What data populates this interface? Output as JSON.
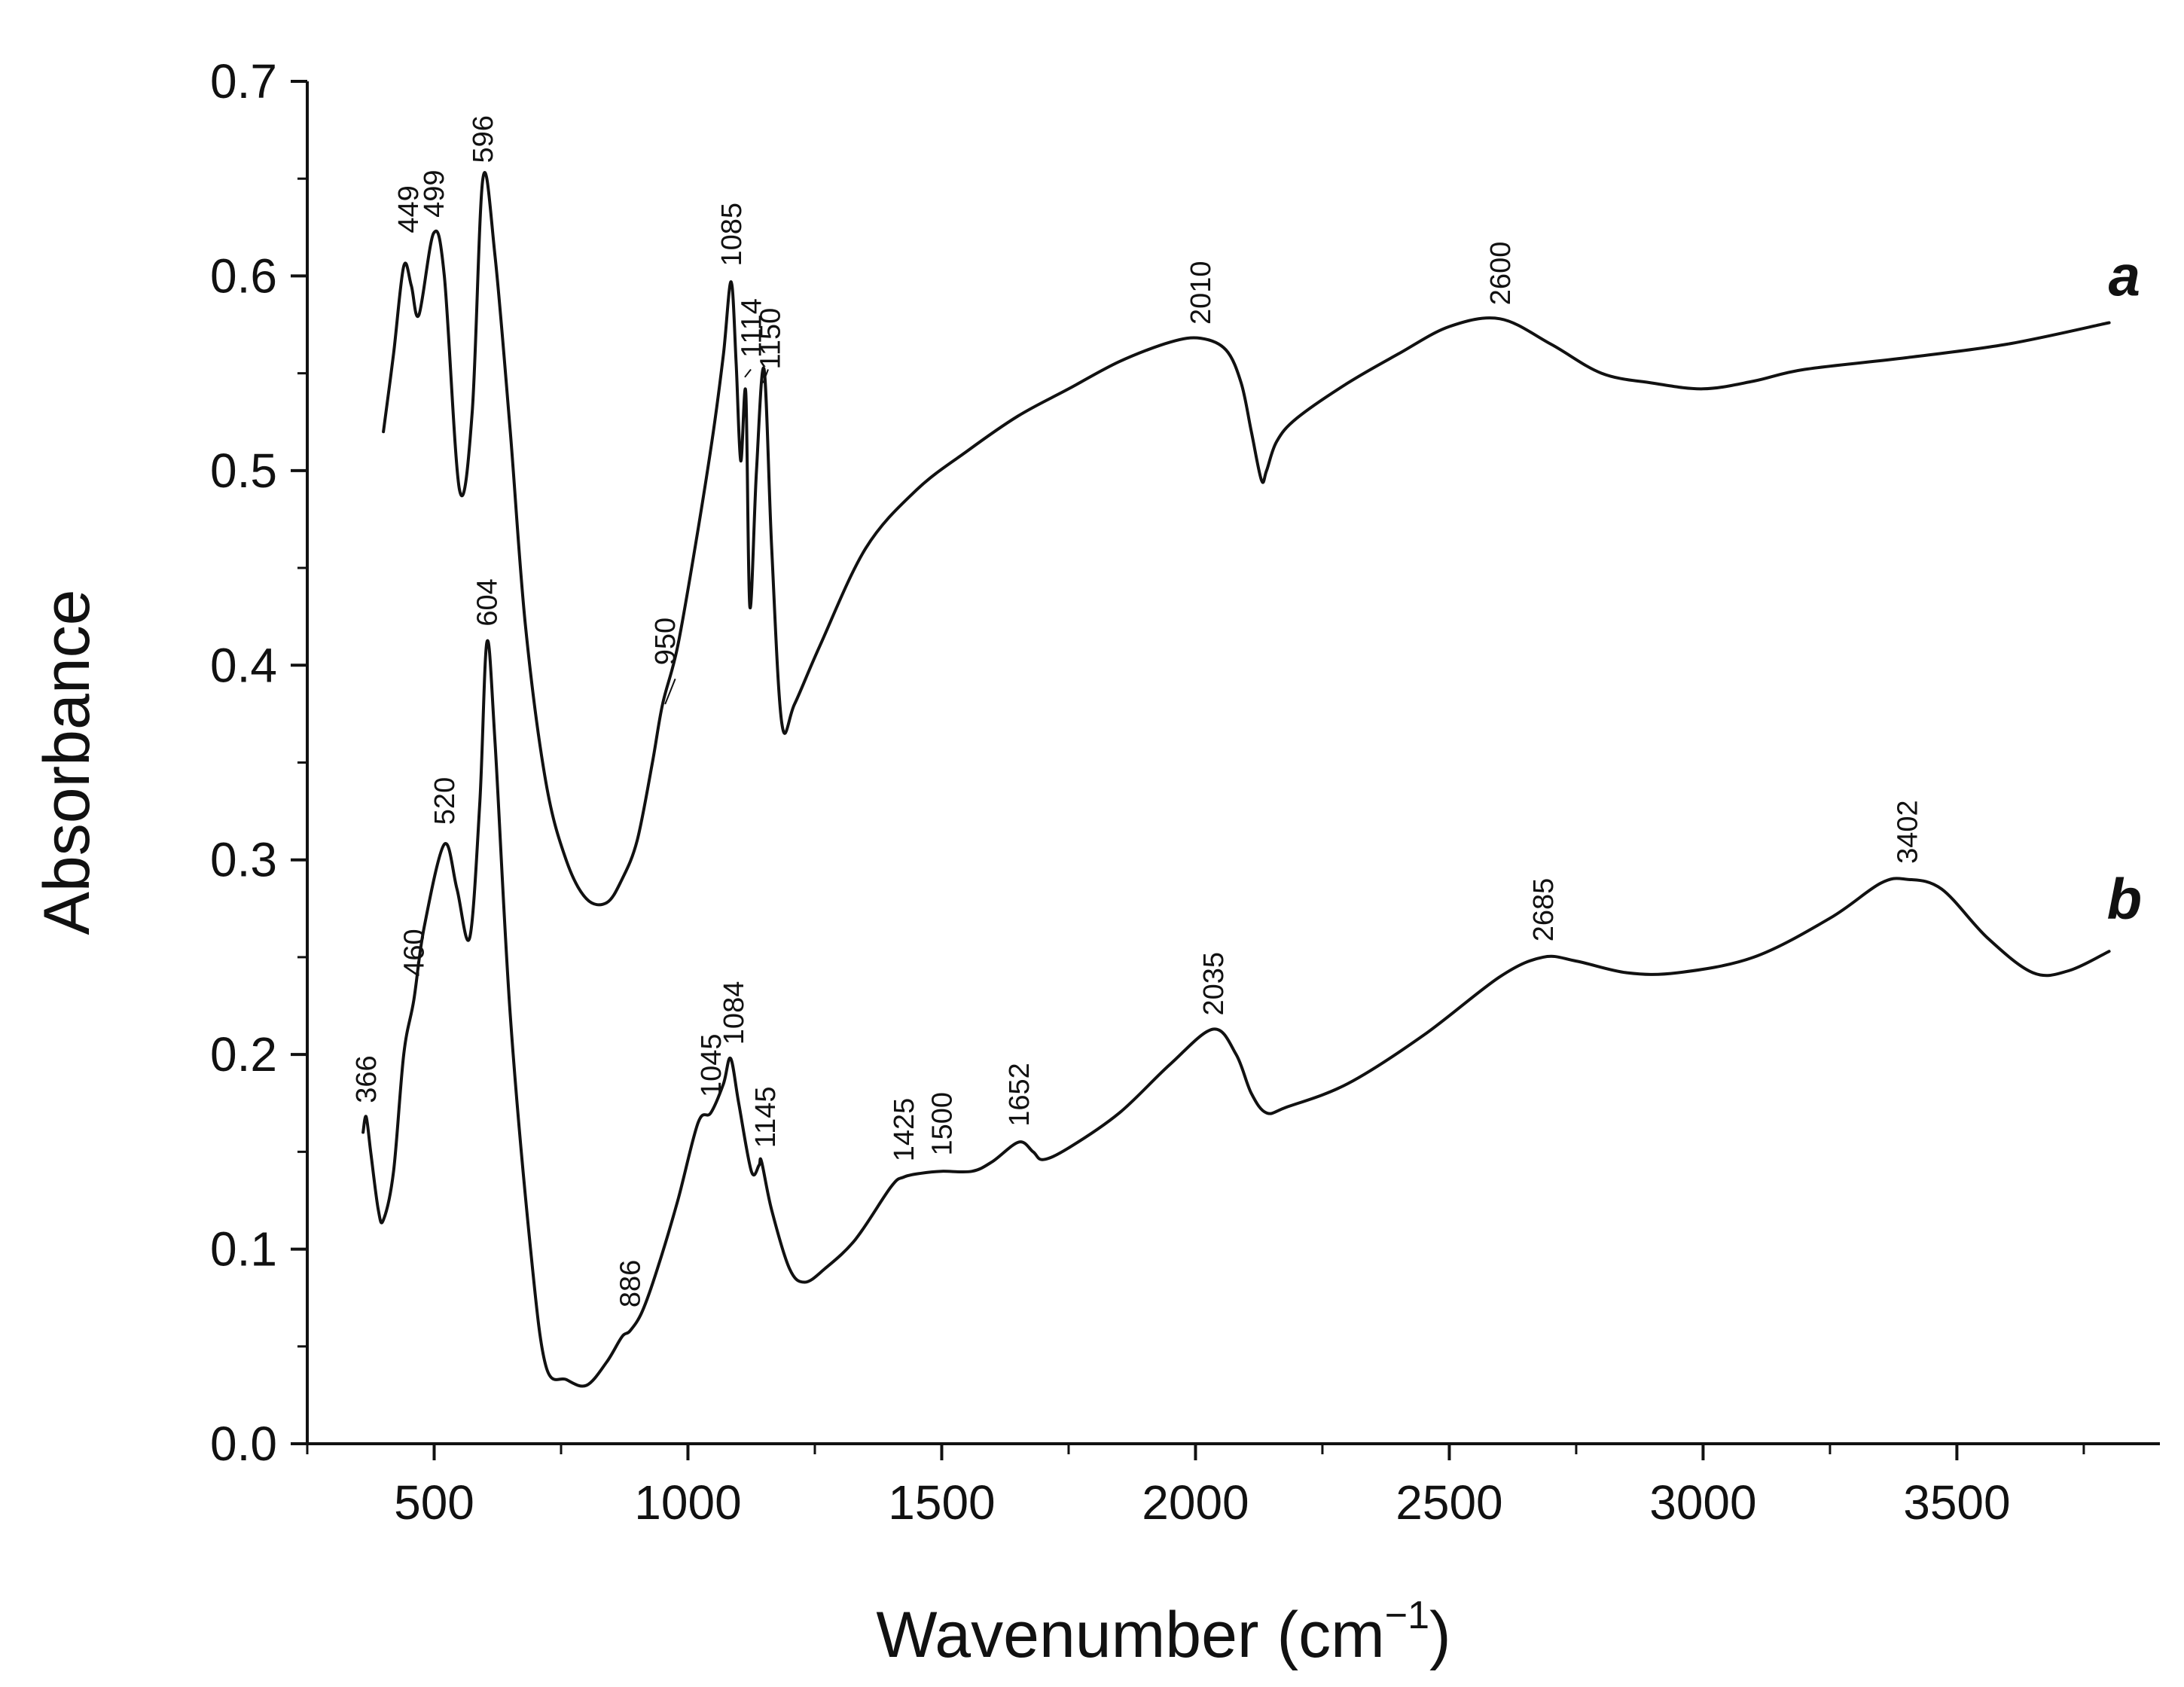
{
  "chart_data": {
    "type": "line",
    "title": "",
    "xlabel": "Wavenumber (cm",
    "xlabel_unit_sup": "−1",
    "xlabel_close": ")",
    "ylabel": "Absorbance",
    "xlim": [
      250,
      3900
    ],
    "ylim": [
      0.0,
      0.7
    ],
    "grid": false,
    "x_ticks": [
      500,
      1000,
      1500,
      2000,
      2500,
      3000,
      3500
    ],
    "x_tick_labels": [
      "500",
      "1000",
      "1500",
      "2000",
      "2500",
      "3000",
      "3500"
    ],
    "y_ticks": [
      0.0,
      0.1,
      0.2,
      0.3,
      0.4,
      0.5,
      0.6,
      0.7
    ],
    "y_tick_labels": [
      "0.0",
      "0.1",
      "0.2",
      "0.3",
      "0.4",
      "0.5",
      "0.6",
      "0.7"
    ],
    "series": [
      {
        "name": "a",
        "label": "a",
        "label_pos": [
          3830,
          0.6
        ],
        "x": [
          400,
          420,
          440,
          455,
          470,
          499,
          520,
          550,
          575,
          596,
          620,
          650,
          680,
          720,
          760,
          800,
          840,
          870,
          900,
          930,
          950,
          980,
          1020,
          1050,
          1070,
          1085,
          1095,
          1104,
          1114,
          1122,
          1135,
          1150,
          1165,
          1185,
          1210,
          1260,
          1350,
          1450,
          1550,
          1650,
          1750,
          1850,
          1950,
          2010,
          2060,
          2090,
          2110,
          2130,
          2140,
          2160,
          2200,
          2300,
          2400,
          2500,
          2600,
          2700,
          2800,
          2900,
          3000,
          3100,
          3200,
          3400,
          3600,
          3800
        ],
        "y": [
          0.52,
          0.56,
          0.605,
          0.595,
          0.58,
          0.622,
          0.6,
          0.49,
          0.53,
          0.65,
          0.61,
          0.52,
          0.42,
          0.34,
          0.3,
          0.28,
          0.278,
          0.29,
          0.31,
          0.35,
          0.38,
          0.41,
          0.47,
          0.52,
          0.56,
          0.597,
          0.555,
          0.505,
          0.54,
          0.43,
          0.5,
          0.552,
          0.46,
          0.37,
          0.38,
          0.41,
          0.46,
          0.49,
          0.51,
          0.528,
          0.542,
          0.556,
          0.566,
          0.568,
          0.562,
          0.545,
          0.52,
          0.495,
          0.5,
          0.515,
          0.527,
          0.545,
          0.56,
          0.574,
          0.578,
          0.565,
          0.55,
          0.545,
          0.542,
          0.546,
          0.552,
          0.558,
          0.565,
          0.576
        ]
      },
      {
        "name": "b",
        "label": "b",
        "label_pos": [
          3830,
          0.28
        ],
        "x": [
          360,
          366,
          375,
          390,
          400,
          420,
          440,
          460,
          480,
          520,
          545,
          570,
          590,
          604,
          620,
          650,
          690,
          720,
          760,
          800,
          840,
          870,
          886,
          910,
          940,
          980,
          1020,
          1045,
          1070,
          1084,
          1100,
          1125,
          1140,
          1145,
          1165,
          1200,
          1230,
          1270,
          1330,
          1400,
          1425,
          1460,
          1500,
          1560,
          1600,
          1652,
          1680,
          1700,
          1750,
          1850,
          1950,
          2035,
          2080,
          2110,
          2140,
          2180,
          2300,
          2450,
          2600,
          2685,
          2750,
          2850,
          2950,
          3100,
          3250,
          3350,
          3402,
          3470,
          3560,
          3650,
          3720,
          3800
        ],
        "y": [
          0.16,
          0.168,
          0.15,
          0.12,
          0.115,
          0.14,
          0.2,
          0.228,
          0.265,
          0.308,
          0.285,
          0.26,
          0.33,
          0.412,
          0.36,
          0.22,
          0.1,
          0.04,
          0.033,
          0.03,
          0.042,
          0.055,
          0.058,
          0.068,
          0.09,
          0.125,
          0.165,
          0.17,
          0.185,
          0.198,
          0.175,
          0.14,
          0.143,
          0.145,
          0.12,
          0.09,
          0.083,
          0.09,
          0.105,
          0.132,
          0.137,
          0.139,
          0.14,
          0.14,
          0.145,
          0.155,
          0.15,
          0.146,
          0.152,
          0.17,
          0.195,
          0.213,
          0.2,
          0.18,
          0.17,
          0.173,
          0.185,
          0.21,
          0.24,
          0.25,
          0.248,
          0.242,
          0.242,
          0.25,
          0.27,
          0.288,
          0.29,
          0.285,
          0.26,
          0.242,
          0.243,
          0.253
        ]
      }
    ],
    "annotations": [
      {
        "text": "449",
        "x": 449,
        "y": 0.622,
        "series": "a"
      },
      {
        "text": "499",
        "x": 499,
        "y": 0.63,
        "series": "a"
      },
      {
        "text": "596",
        "x": 596,
        "y": 0.658,
        "series": "a"
      },
      {
        "text": "950",
        "x": 955,
        "y": 0.4,
        "series": "a",
        "leader": [
          955,
          0.38,
          975,
          0.393
        ]
      },
      {
        "text": "1085",
        "x": 1085,
        "y": 0.605,
        "series": "a"
      },
      {
        "text": "1114",
        "x": 1125,
        "y": 0.558,
        "series": "a",
        "leader": [
          1112,
          0.548,
          1124,
          0.552
        ]
      },
      {
        "text": "1150",
        "x": 1162,
        "y": 0.552,
        "series": "a",
        "leader": [
          1148,
          0.545,
          1158,
          0.552
        ]
      },
      {
        "text": "2010",
        "x": 2010,
        "y": 0.575,
        "series": "a"
      },
      {
        "text": "2600",
        "x": 2600,
        "y": 0.585,
        "series": "a"
      },
      {
        "text": "366",
        "x": 366,
        "y": 0.175,
        "series": "b"
      },
      {
        "text": "460",
        "x": 460,
        "y": 0.24,
        "series": "b"
      },
      {
        "text": "520",
        "x": 520,
        "y": 0.318,
        "series": "b"
      },
      {
        "text": "604",
        "x": 604,
        "y": 0.42,
        "series": "b"
      },
      {
        "text": "886",
        "x": 886,
        "y": 0.07,
        "series": "b"
      },
      {
        "text": "1045",
        "x": 1045,
        "y": 0.178,
        "series": "b"
      },
      {
        "text": "1084",
        "x": 1090,
        "y": 0.205,
        "series": "b"
      },
      {
        "text": "1145",
        "x": 1152,
        "y": 0.152,
        "series": "b"
      },
      {
        "text": "1425",
        "x": 1425,
        "y": 0.145,
        "series": "b"
      },
      {
        "text": "1500",
        "x": 1500,
        "y": 0.148,
        "series": "b"
      },
      {
        "text": "1652",
        "x": 1652,
        "y": 0.163,
        "series": "b"
      },
      {
        "text": "2035",
        "x": 2035,
        "y": 0.22,
        "series": "b"
      },
      {
        "text": "2685",
        "x": 2685,
        "y": 0.258,
        "series": "b"
      },
      {
        "text": "3402",
        "x": 3402,
        "y": 0.298,
        "series": "b"
      }
    ]
  }
}
